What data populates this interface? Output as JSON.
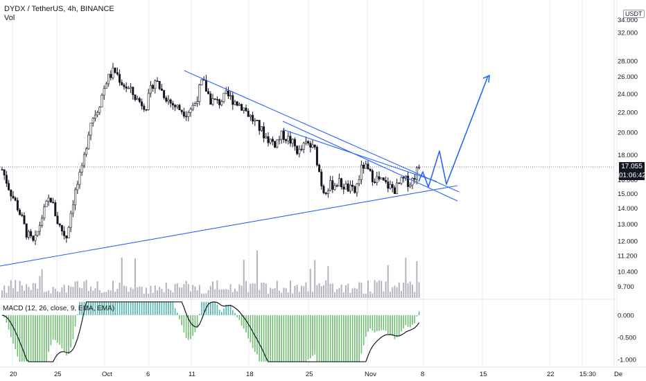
{
  "header": {
    "title": "DYDX / TetherUS, 4h, BINANCE",
    "vol_label": "Vol",
    "currency_badge": "USDT",
    "macd_label": "MACD (12, 26, close, 9, EMA, EMA)"
  },
  "last_price": {
    "value": "17.055",
    "countdown": "01:06:42"
  },
  "colors": {
    "up_candle": "#131722",
    "down_candle": "#131722",
    "trendline": "#2962ff",
    "volume": "#b2b5be",
    "macd_hist_up": "#26a69a",
    "macd_hist_pos": "#4caf50",
    "macd_line": "#131722",
    "grid": "#e9ebf0"
  },
  "chart_data": {
    "type": "candlestick",
    "title": "DYDX / TetherUS, 4h, BINANCE",
    "price_axis_labels": [
      "34.000",
      "32.000",
      "28.000",
      "26.000",
      "24.000",
      "22.000",
      "20.000",
      "18.000",
      "16.000",
      "15.000",
      "14.000",
      "13.000",
      "12.000",
      "11.200",
      "10.400",
      "9.700"
    ],
    "macd_axis_labels": [
      "0.000",
      "-0.500",
      "-1.000"
    ],
    "time_axis_labels": [
      "20",
      "25",
      "Oct",
      "6",
      "11",
      "18",
      "25",
      "Nov",
      "8",
      "15",
      "22",
      "15:30",
      "De"
    ],
    "scale": "log",
    "price_range": [
      9.3,
      34.0
    ],
    "close_series_approx": [
      16.8,
      15.2,
      14.0,
      12.5,
      11.8,
      13.5,
      14.8,
      13.0,
      12.2,
      14.9,
      16.8,
      21.0,
      22.5,
      25.5,
      26.8,
      25.2,
      24.3,
      23.2,
      22.7,
      25.8,
      24.2,
      23.0,
      22.4,
      22.0,
      22.8,
      25.5,
      23.3,
      23.0,
      23.8,
      23.2,
      22.6,
      21.5,
      20.5,
      19.5,
      19.0,
      19.8,
      19.2,
      18.2,
      19.0,
      18.4,
      15.2,
      15.6,
      15.8,
      15.4,
      15.1,
      17.2,
      16.3,
      16.0,
      15.6,
      15.3,
      16.0,
      15.8,
      17.055
    ],
    "last_price": 17.055,
    "annotations": [
      "descending trendline",
      "ascending trendline",
      "descending channel lines",
      "projected zigzag arrow"
    ]
  }
}
